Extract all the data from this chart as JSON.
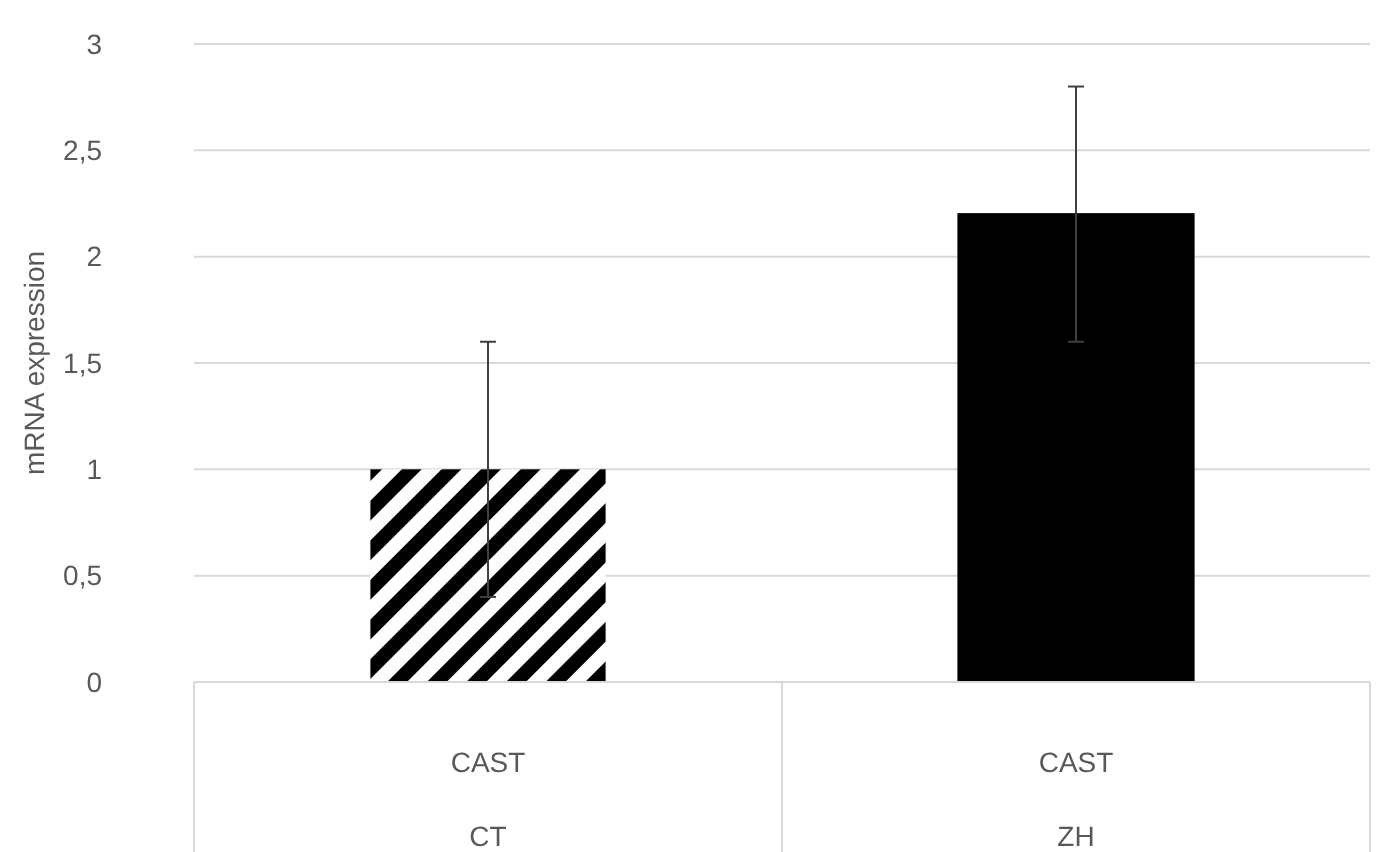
{
  "chart_data": {
    "type": "bar",
    "ylabel": "mRNA expression",
    "categories": [
      "CAST",
      "CAST"
    ],
    "values": [
      1.0,
      2.2
    ],
    "errors": [
      0.6,
      0.6
    ],
    "colors": [
      "#000000",
      "#000000"
    ],
    "ylim": [
      0,
      3
    ],
    "yticks": [
      0,
      {
        "value": 0.5,
        "label": "0,5"
      },
      1,
      {
        "value": 1.5,
        "label": "1,5"
      },
      2,
      {
        "value": 2.5,
        "label": "2,5"
      },
      3
    ],
    "grid": "y",
    "annotations": [
      "CT",
      "ZH"
    ]
  }
}
